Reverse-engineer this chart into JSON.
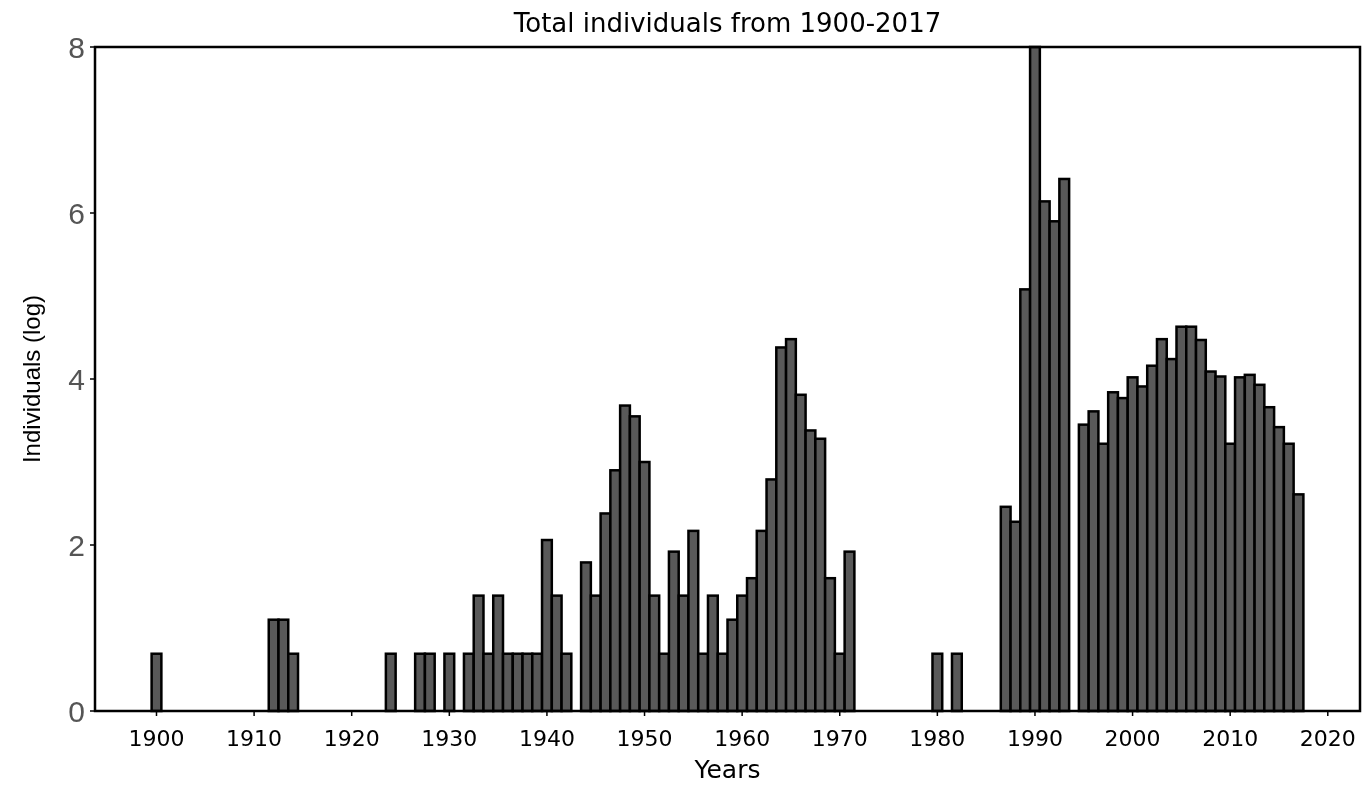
{
  "chart_data": {
    "type": "bar",
    "title": "Total individuals from 1900-2017",
    "xlabel": "Years",
    "ylabel": "Individuals (log)",
    "x": [
      1900,
      1912,
      1913,
      1914,
      1924,
      1927,
      1928,
      1930,
      1932,
      1933,
      1934,
      1935,
      1936,
      1937,
      1938,
      1939,
      1940,
      1941,
      1942,
      1944,
      1945,
      1946,
      1947,
      1948,
      1949,
      1950,
      1951,
      1952,
      1953,
      1954,
      1955,
      1956,
      1957,
      1958,
      1959,
      1960,
      1961,
      1962,
      1963,
      1964,
      1965,
      1966,
      1967,
      1968,
      1969,
      1970,
      1971,
      1980,
      1982,
      1987,
      1988,
      1989,
      1990,
      1991,
      1992,
      1993,
      1995,
      1996,
      1997,
      1998,
      1999,
      2000,
      2001,
      2002,
      2003,
      2004,
      2005,
      2006,
      2007,
      2008,
      2009,
      2010,
      2011,
      2012,
      2013,
      2014,
      2015,
      2016,
      2017
    ],
    "values": [
      0.69,
      1.1,
      1.1,
      0.69,
      0.69,
      0.69,
      0.69,
      0.69,
      0.69,
      1.39,
      0.69,
      1.39,
      0.69,
      0.69,
      0.69,
      0.69,
      2.06,
      1.39,
      0.69,
      1.79,
      1.39,
      2.38,
      2.9,
      3.68,
      3.55,
      3.0,
      1.39,
      0.69,
      1.92,
      1.39,
      2.17,
      0.69,
      1.39,
      0.69,
      1.1,
      1.39,
      1.6,
      2.17,
      2.79,
      4.38,
      4.48,
      3.81,
      3.38,
      3.28,
      1.6,
      0.69,
      1.92,
      0.69,
      0.69,
      2.46,
      2.28,
      5.08,
      8,
      6.14,
      5.9,
      6.41,
      3.45,
      3.61,
      3.22,
      3.84,
      3.77,
      4.02,
      3.91,
      4.16,
      4.48,
      4.24,
      4.63,
      4.63,
      4.47,
      4.09,
      4.03,
      3.22,
      4.02,
      4.05,
      3.93,
      3.66,
      3.42,
      3.22,
      2.61
    ],
    "color": "#595959",
    "xlim": [
      1893.7,
      2023.3
    ],
    "xticks": [
      1900,
      1910,
      1920,
      1930,
      1940,
      1950,
      1960,
      1970,
      1980,
      1990,
      2000,
      2010,
      2020
    ],
    "ylim": [
      0,
      8
    ],
    "yticks": [
      0,
      2,
      4,
      6,
      8
    ],
    "grid": false
  }
}
